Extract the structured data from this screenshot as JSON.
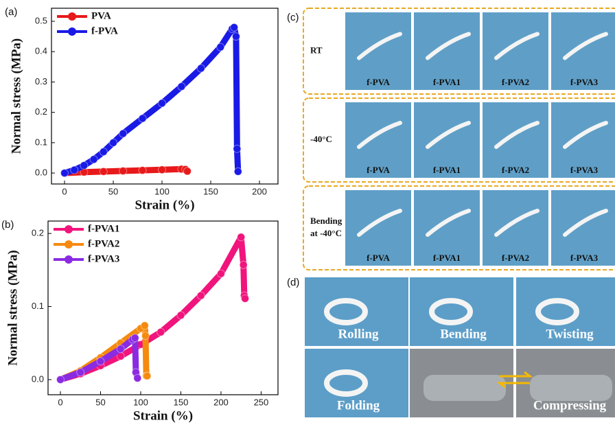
{
  "chart_data": [
    {
      "type": "line",
      "label": "(a)",
      "x_label": "Strain (%)",
      "y_label": "Normal stress (MPa)",
      "xlim": [
        -13.4,
        219
      ],
      "xticks": [
        0,
        50,
        100,
        150,
        200
      ],
      "ylim": [
        -0.036,
        0.543
      ],
      "yticks": [
        {
          "value": 0,
          "label": "0.0"
        },
        0.1,
        0.2,
        0.3,
        0.4,
        0.5
      ],
      "legend": "upper left",
      "series": [
        {
          "name": "PVA",
          "color": "#e8191a",
          "x": [
            0,
            20,
            40,
            60,
            80,
            100,
            120,
            124,
            126
          ],
          "values": [
            0,
            0.003,
            0.005,
            0.007,
            0.009,
            0.011,
            0.013,
            0.012,
            0.006
          ]
        },
        {
          "name": "f-PVA",
          "color": "#1a1ae6",
          "x": [
            0,
            10,
            20,
            30,
            40,
            50,
            60,
            80,
            100,
            120,
            140,
            160,
            172,
            174,
            176,
            177,
            178
          ],
          "values": [
            0,
            0.01,
            0.025,
            0.045,
            0.07,
            0.1,
            0.13,
            0.18,
            0.23,
            0.285,
            0.345,
            0.415,
            0.475,
            0.48,
            0.45,
            0.08,
            0.005
          ]
        }
      ]
    },
    {
      "type": "line",
      "label": "(b)",
      "x_label": "Strain (%)",
      "y_label": "Normal stress (MPa)",
      "xlim": [
        -15.4,
        271
      ],
      "xticks": [
        0,
        50,
        100,
        150,
        200,
        250
      ],
      "ylim": [
        -0.0207,
        0.217
      ],
      "yticks": [
        {
          "value": 0,
          "label": "0.0"
        },
        0.1,
        0.2
      ],
      "legend": "upper left",
      "series": [
        {
          "name": "f-PVA1",
          "color": "#f0147c",
          "x": [
            0,
            25,
            50,
            75,
            100,
            125,
            150,
            175,
            200,
            225,
            228,
            229,
            230
          ],
          "values": [
            0,
            0.008,
            0.019,
            0.032,
            0.048,
            0.065,
            0.088,
            0.115,
            0.145,
            0.195,
            0.157,
            0.115,
            0.111
          ]
        },
        {
          "name": "f-PVA2",
          "color": "#f58a0f",
          "x": [
            0,
            25,
            50,
            75,
            100,
            105,
            106,
            107,
            108
          ],
          "values": [
            0,
            0.012,
            0.03,
            0.05,
            0.07,
            0.074,
            0.06,
            0.005,
            0.005
          ]
        },
        {
          "name": "f-PVA3",
          "color": "#8a2be2",
          "x": [
            0,
            25,
            50,
            75,
            90,
            93,
            94,
            96
          ],
          "values": [
            0,
            0.01,
            0.025,
            0.042,
            0.055,
            0.057,
            0.01,
            0.002
          ]
        }
      ]
    }
  ],
  "photos_c": {
    "label": "(c)",
    "rows": [
      {
        "label": [
          "RT"
        ],
        "captions": [
          "f-PVA",
          "f-PVA1",
          "f-PVA2",
          "f-PVA3"
        ]
      },
      {
        "label": [
          "-40°C"
        ],
        "captions": [
          "f-PVA",
          "f-PVA1",
          "f-PVA2",
          "f-PVA3"
        ]
      },
      {
        "label": [
          "Bending",
          "at -40°C"
        ],
        "captions": [
          "f-PVA",
          "f-PVA1",
          "f-PVA2",
          "f-PVA3"
        ]
      }
    ]
  },
  "photos_d": {
    "label": "(d)",
    "captions": [
      "Rolling",
      "Bending",
      "Twisting",
      "Folding",
      "Compressing"
    ]
  }
}
